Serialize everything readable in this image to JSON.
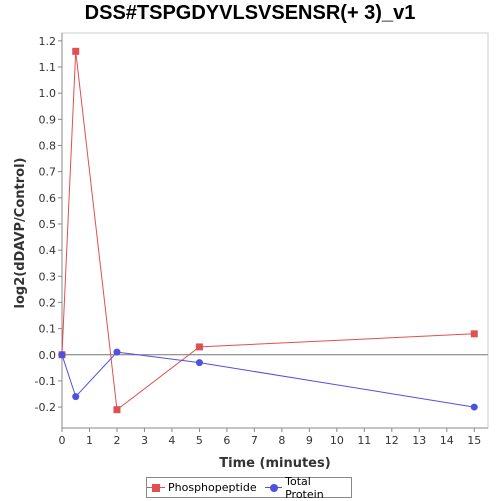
{
  "chart_data": {
    "type": "line",
    "title": "DSS#TSPGDYVLSVSENSR(+ 3)_v1",
    "xlabel": "Time (minutes)",
    "ylabel": "log2(dDAVP/Control)",
    "xlim": [
      0,
      15.5
    ],
    "ylim": [
      -0.28,
      1.23
    ],
    "x_ticks": [
      0,
      1,
      2,
      3,
      4,
      5,
      6,
      7,
      8,
      9,
      10,
      11,
      12,
      13,
      14,
      15
    ],
    "y_ticks": [
      -0.2,
      -0.1,
      0.0,
      0.1,
      0.2,
      0.3,
      0.4,
      0.5,
      0.6,
      0.7,
      0.8,
      0.9,
      1.0,
      1.1,
      1.2
    ],
    "grid": false,
    "zero_line": true,
    "legend_position": "bottom",
    "series": [
      {
        "name": "Phosphopeptide",
        "color": "#e05050",
        "marker": "square",
        "x": [
          0,
          0.5,
          2,
          5,
          15
        ],
        "y": [
          0.0,
          1.16,
          -0.21,
          0.03,
          0.08
        ]
      },
      {
        "name": "Total Protein",
        "color": "#5050e0",
        "marker": "circle",
        "x": [
          0,
          0.5,
          2,
          5,
          15
        ],
        "y": [
          0.0,
          -0.16,
          0.01,
          -0.03,
          -0.2
        ]
      }
    ]
  }
}
